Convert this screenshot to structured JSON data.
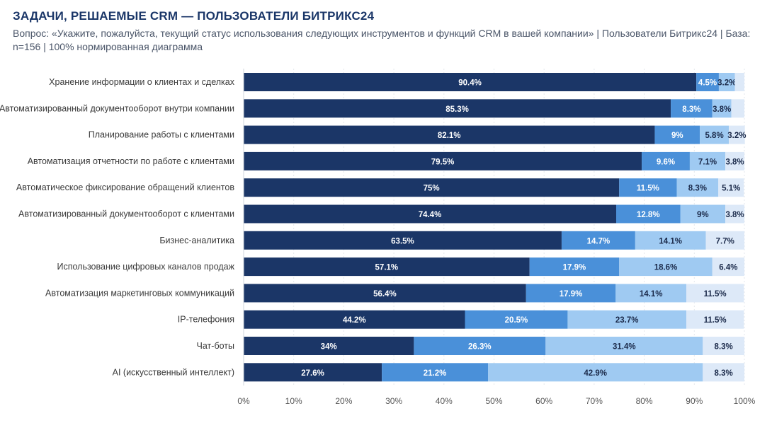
{
  "header": {
    "title": "ЗАДАЧИ, РЕШАЕМЫЕ CRM — ПОЛЬЗОВАТЕЛИ БИТРИКС24",
    "subtitle": "Вопрос: «Укажите, пожалуйста, текущий статус использования следующих инструментов и функций CRM в вашей компании» | Пользователи Битрикс24 | База: n=156 | 100% нормированная диаграмма"
  },
  "colors": [
    "#1b3667",
    "#4a90d9",
    "#9fcaf2",
    "#dde9f8"
  ],
  "chart_data": {
    "type": "bar",
    "orientation": "horizontal",
    "stacked": true,
    "normalized": true,
    "categories": [
      "Хранение информации о клиентах и сделках",
      "Автоматизированный документооборот внутри компании",
      "Планирование работы с клиентами",
      "Автоматизация отчетности по работе с клиентами",
      "Автоматическое фиксирование обращений клиентов",
      "Автоматизированный документооборот с клиентами",
      "Бизнес-аналитика",
      "Использование цифровых каналов продаж",
      "Автоматизация маркетинговых коммуникаций",
      "IP-телефония",
      "Чат-боты",
      "AI (искусственный интеллект)"
    ],
    "series": [
      {
        "values": [
          90.4,
          85.3,
          82.1,
          79.5,
          75,
          74.4,
          63.5,
          57.1,
          56.4,
          44.2,
          34,
          27.6
        ]
      },
      {
        "values": [
          4.5,
          8.3,
          9,
          9.6,
          11.5,
          12.8,
          14.7,
          17.9,
          17.9,
          20.5,
          26.3,
          21.2
        ]
      },
      {
        "values": [
          3.2,
          3.8,
          5.8,
          7.1,
          8.3,
          9,
          14.1,
          18.6,
          14.1,
          23.7,
          31.4,
          42.9
        ]
      },
      {
        "values": [
          1.9,
          2.6,
          3.2,
          3.8,
          5.1,
          3.8,
          7.7,
          6.4,
          11.5,
          11.5,
          8.3,
          8.3
        ]
      }
    ],
    "labels": [
      [
        "90.4%",
        "4.5%",
        "3.2%",
        ""
      ],
      [
        "85.3%",
        "8.3%",
        "3.8%",
        ""
      ],
      [
        "82.1%",
        "9%",
        "5.8%",
        "3.2%"
      ],
      [
        "79.5%",
        "9.6%",
        "7.1%",
        "3.8%"
      ],
      [
        "75%",
        "11.5%",
        "8.3%",
        "5.1%"
      ],
      [
        "74.4%",
        "12.8%",
        "9%",
        "3.8%"
      ],
      [
        "63.5%",
        "14.7%",
        "14.1%",
        "7.7%"
      ],
      [
        "57.1%",
        "17.9%",
        "18.6%",
        "6.4%"
      ],
      [
        "56.4%",
        "17.9%",
        "14.1%",
        "11.5%"
      ],
      [
        "44.2%",
        "20.5%",
        "23.7%",
        "11.5%"
      ],
      [
        "34%",
        "26.3%",
        "31.4%",
        "8.3%"
      ],
      [
        "27.6%",
        "21.2%",
        "42.9%",
        "8.3%"
      ]
    ],
    "xlim": [
      0,
      100
    ],
    "xticks": [
      "0%",
      "10%",
      "20%",
      "30%",
      "40%",
      "50%",
      "60%",
      "70%",
      "80%",
      "90%",
      "100%"
    ],
    "grid": true,
    "legend": "none"
  }
}
